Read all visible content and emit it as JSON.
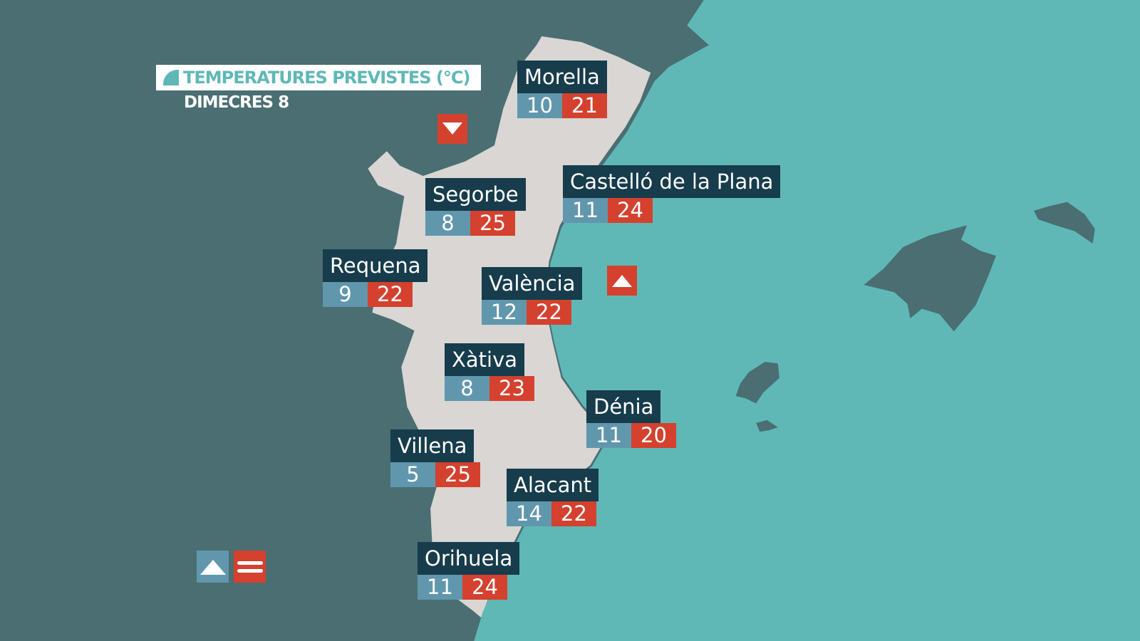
{
  "header": {
    "title": "TEMPERATURES PREVISTES (°C)",
    "day": "DIMECRES 8"
  },
  "colors": {
    "sea": "#5fb8b6",
    "land": "#4a6e72",
    "region": "#d9d6d4",
    "label_bg": "#173c4c",
    "min": "#6197ad",
    "max": "#d4412e"
  },
  "cities": [
    {
      "name": "Morella",
      "min": "10",
      "max": "21"
    },
    {
      "name": "Castelló de la Plana",
      "min": "11",
      "max": "24"
    },
    {
      "name": "Segorbe",
      "min": "8",
      "max": "25"
    },
    {
      "name": "Requena",
      "min": "9",
      "max": "22"
    },
    {
      "name": "València",
      "min": "12",
      "max": "22"
    },
    {
      "name": "Xàtiva",
      "min": "8",
      "max": "23"
    },
    {
      "name": "Dénia",
      "min": "11",
      "max": "20"
    },
    {
      "name": "Villena",
      "min": "5",
      "max": "25"
    },
    {
      "name": "Alacant",
      "min": "14",
      "max": "22"
    },
    {
      "name": "Orihuela",
      "min": "11",
      "max": "24"
    }
  ],
  "trend_icons": {
    "inland_north": "arrow-down-icon",
    "coast_center": "arrow-up-icon",
    "legend_min": "arrow-up-icon",
    "legend_max": "equals-icon"
  }
}
